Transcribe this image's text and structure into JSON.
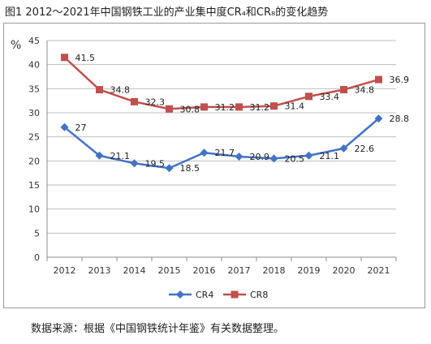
{
  "figure": {
    "title": "图1   2012～2021年中国钢铁工业的产业集中度CR₄和CR₈的变化趋势",
    "source": "数据来源：根据《中国钢铁统计年鉴》有关数据整理。"
  },
  "chart_data": {
    "type": "line",
    "categories": [
      "2012",
      "2013",
      "2014",
      "2015",
      "2016",
      "2017",
      "2018",
      "2019",
      "2020",
      "2021"
    ],
    "ylabel": "%",
    "ylim": [
      0,
      45
    ],
    "yticks": [
      "0",
      "5",
      "10",
      "15",
      "20",
      "25",
      "30",
      "35",
      "40",
      "45"
    ],
    "grid": true,
    "legend": "bottom",
    "series": [
      {
        "name": "CR4",
        "color": "#4472C4",
        "marker": "diamond",
        "values": [
          27,
          21.1,
          19.5,
          18.5,
          21.7,
          20.9,
          20.5,
          21.1,
          22.6,
          28.8
        ],
        "labels": [
          "27",
          "21.1",
          "19.5",
          "18.5",
          "21.7",
          "20.9",
          "20.5",
          "21.1",
          "22.6",
          "28.8"
        ]
      },
      {
        "name": "CR8",
        "color": "#C0504D",
        "marker": "square",
        "values": [
          41.5,
          34.8,
          32.3,
          30.8,
          31.2,
          31.2,
          31.4,
          33.4,
          34.8,
          36.9
        ],
        "labels": [
          "41.5",
          "34.8",
          "32.3",
          "30.8",
          "31.2",
          "31.2",
          "31.4",
          "33.4",
          "34.8",
          "36.9"
        ]
      }
    ]
  }
}
